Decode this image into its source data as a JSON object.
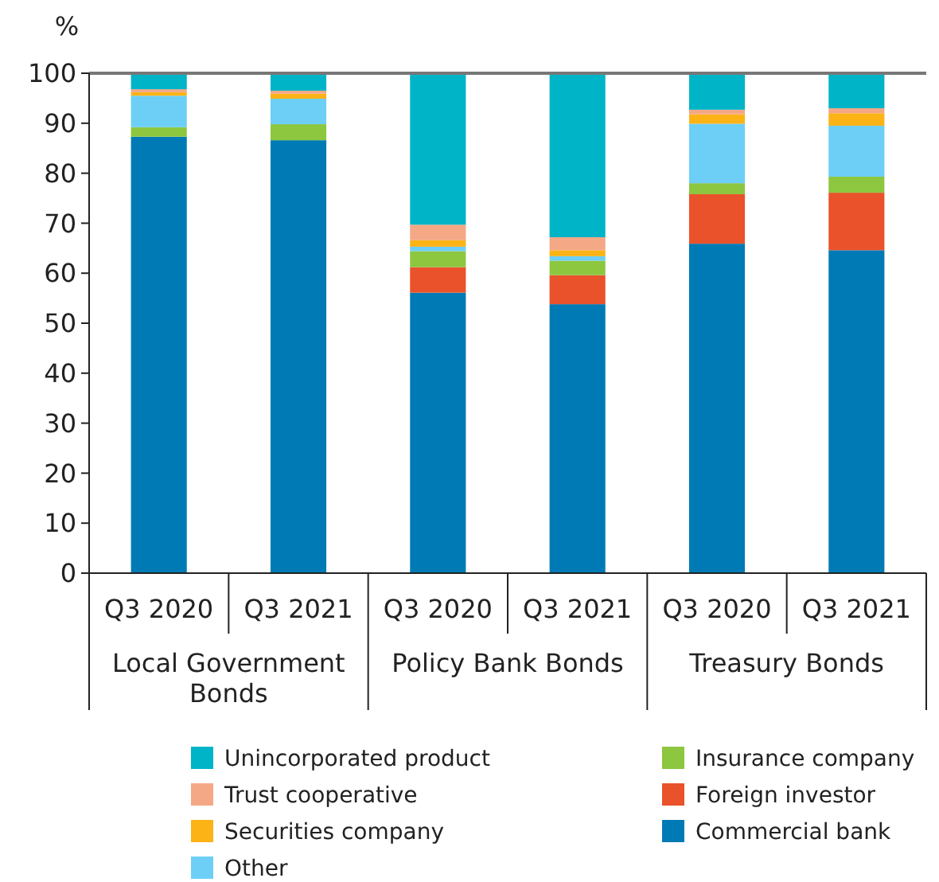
{
  "chart_data": {
    "type": "bar",
    "stacked": true,
    "ylabel": "%",
    "categories": [
      "Q3 2020",
      "Q3 2021",
      "Q3 2020",
      "Q3 2021",
      "Q3 2020",
      "Q3 2021"
    ],
    "annotations": [
      "Local Government Bonds",
      "Policy Bank Bonds",
      "Treasury Bonds"
    ],
    "ylim": [
      0,
      100
    ],
    "yticks": [
      0,
      10,
      20,
      30,
      40,
      50,
      60,
      70,
      80,
      90,
      100
    ],
    "legend": "bottom",
    "grid": false,
    "series": [
      {
        "name": "Commercial bank",
        "color": "#007ab5",
        "values": [
          87.3,
          86.6,
          56.1,
          53.8,
          65.9,
          64.6
        ]
      },
      {
        "name": "Foreign investor",
        "color": "#e9522b",
        "values": [
          0,
          0,
          5.1,
          5.8,
          9.9,
          11.5
        ]
      },
      {
        "name": "Insurance company",
        "color": "#8dc63f",
        "values": [
          1.9,
          3.2,
          3.2,
          2.9,
          2.2,
          3.2
        ]
      },
      {
        "name": "Other",
        "color": "#6dcff6",
        "values": [
          6.3,
          5.1,
          0.9,
          0.9,
          11.9,
          10.2
        ]
      },
      {
        "name": "Securities company",
        "color": "#fbb316",
        "values": [
          0.7,
          1.0,
          1.3,
          1.2,
          1.9,
          2.5
        ]
      },
      {
        "name": "Trust cooperative",
        "color": "#f4a886",
        "values": [
          0.6,
          0.6,
          3.1,
          2.6,
          0.9,
          1.0
        ]
      },
      {
        "name": "Unincorporated product",
        "color": "#00b4c8",
        "values": [
          3.2,
          3.5,
          30.3,
          32.8,
          7.3,
          7.0
        ]
      }
    ]
  }
}
